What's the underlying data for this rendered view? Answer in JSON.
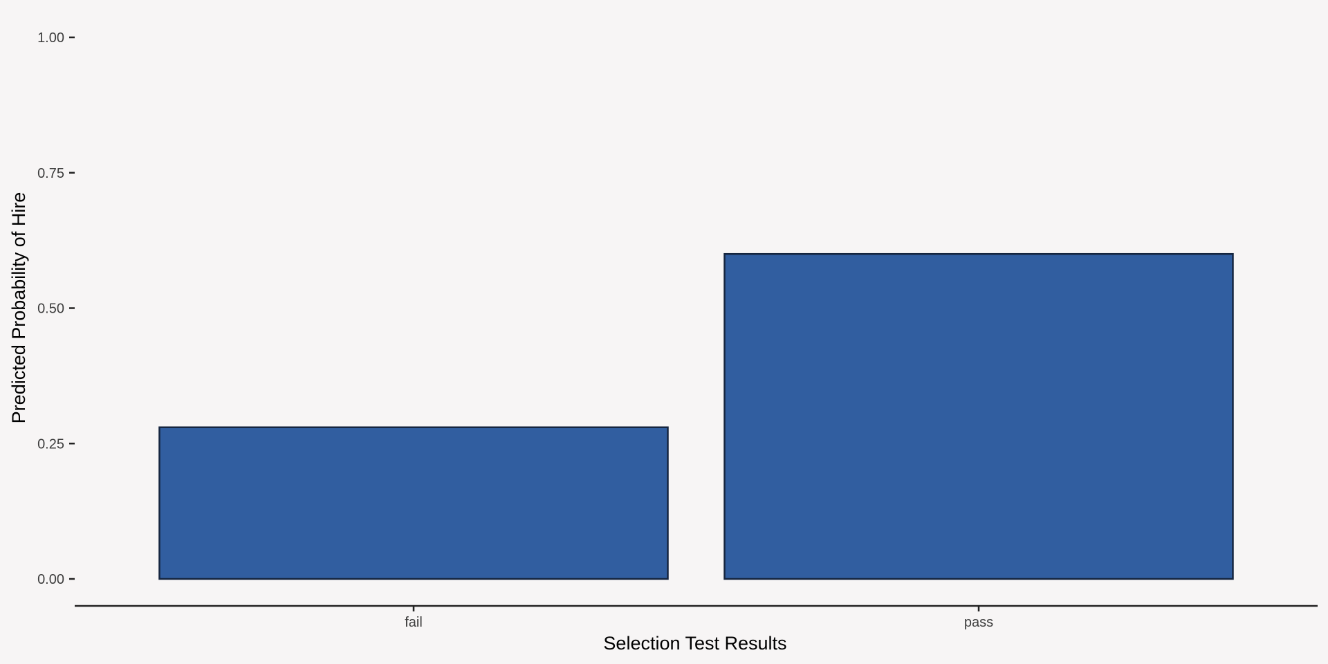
{
  "chart_data": {
    "type": "bar",
    "categories": [
      "fail",
      "pass"
    ],
    "values": [
      0.28,
      0.6
    ],
    "xlabel": "Selection Test Results",
    "ylabel": "Predicted Probability of Hire",
    "ylim": [
      0,
      1
    ],
    "yticks": [
      "0.00",
      "0.25",
      "0.50",
      "0.75",
      "1.00"
    ],
    "ytick_values": [
      0,
      0.25,
      0.5,
      0.75,
      1.0
    ],
    "grid": false,
    "legend": "none",
    "colors": {
      "background": "#f7f5f5",
      "bar_fill": "#315ea0",
      "bar_stroke": "#15253f",
      "axis": "#222222"
    }
  }
}
